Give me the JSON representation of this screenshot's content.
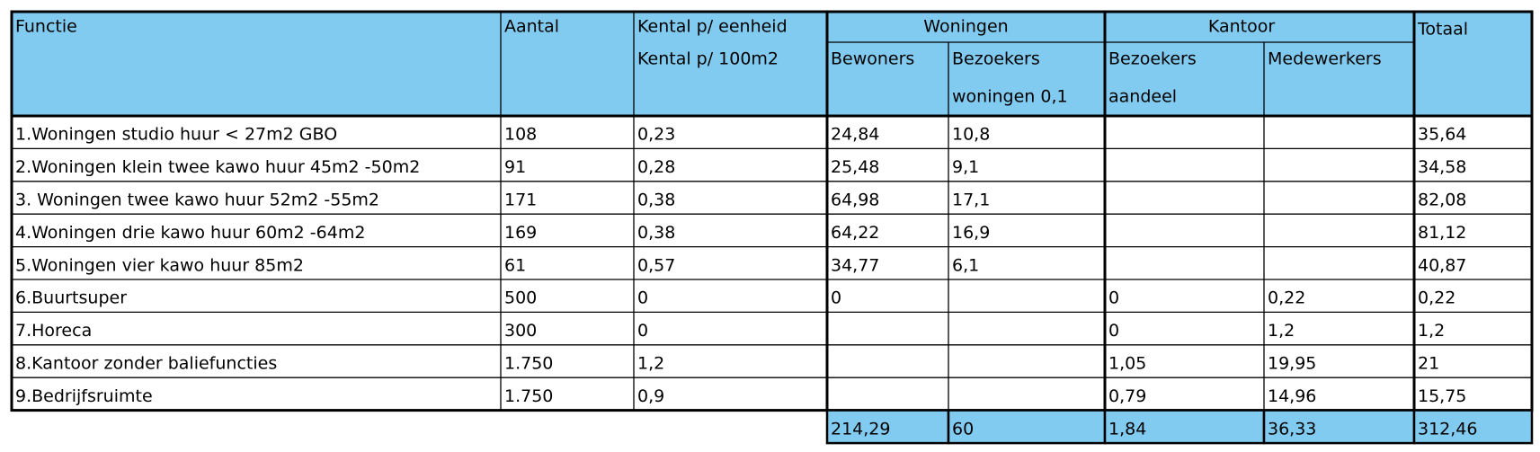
{
  "header": {
    "functie": "Functie",
    "aantal": "Aantal",
    "kental": [
      "Kental p/ eenheid",
      "Kental p/ 100m2"
    ],
    "woningen": "Woningen",
    "kantoor": "Kantoor",
    "totaal": "Totaal",
    "bewoners": "Bewoners",
    "bezoekers_woningen": [
      "Bezoekers",
      "woningen 0,1"
    ],
    "bezoekers_kantoor": [
      "Bezoekers",
      "aandeel"
    ],
    "medewerkers": "Medewerkers"
  },
  "table": {
    "rows": [
      [
        "1.Woningen studio huur < 27m2 GBO",
        "108",
        "0,23",
        "24,84",
        "10,8",
        null,
        null,
        "35,64"
      ],
      [
        "2.Woningen klein twee kawo huur 45m2 -50m2",
        "91",
        "0,28",
        "25,48",
        "9,1",
        null,
        null,
        "34,58"
      ],
      [
        "3. Woningen twee kawo huur 52m2 -55m2",
        "171",
        "0,38",
        "64,98",
        "17,1",
        null,
        null,
        "82,08"
      ],
      [
        "4.Woningen drie kawo huur 60m2 -64m2",
        "169",
        "0,38",
        "64,22",
        "16,9",
        null,
        null,
        "81,12"
      ],
      [
        "5.Woningen vier kawo huur 85m2",
        "61",
        "0,57",
        "34,77",
        "6,1",
        null,
        null,
        "40,87"
      ],
      [
        "6.Buurtsuper",
        "500",
        "0",
        "0",
        null,
        "0",
        "0,22",
        "0,22"
      ],
      [
        "7.Horeca",
        "300",
        "0",
        null,
        null,
        "0",
        "1,2",
        "1,2"
      ],
      [
        "8.Kantoor zonder baliefuncties",
        "1.750",
        "1,2",
        null,
        null,
        "1,05",
        "19,95",
        "21"
      ],
      [
        "9.Bedrijfsruimte",
        "1.750",
        "0,9",
        null,
        null,
        "0,79",
        "14,96",
        "15,75"
      ]
    ],
    "totals": [
      "214,29",
      "60",
      "1,84",
      "36,33",
      "312,46"
    ]
  }
}
